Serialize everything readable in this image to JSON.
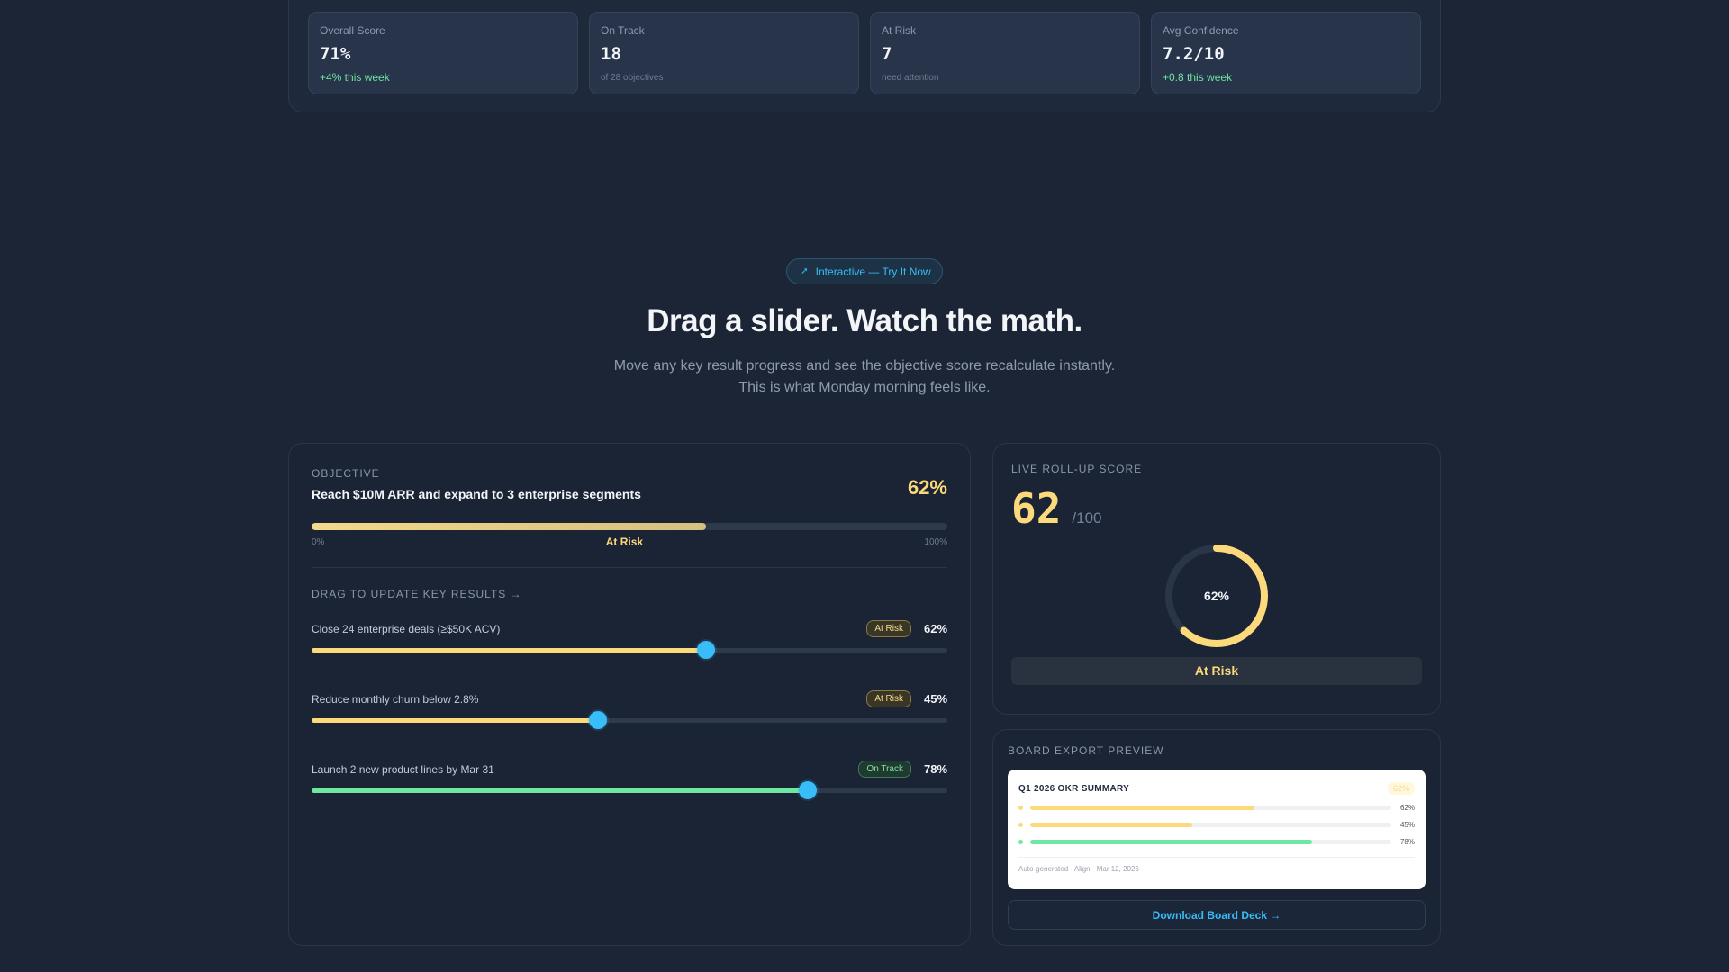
{
  "stats": [
    {
      "label": "Overall Score",
      "value": "71%",
      "sub": "+4% this week",
      "sub_kind": "pos"
    },
    {
      "label": "On Track",
      "value": "18",
      "sub": "of 28 objectives",
      "sub_kind": "muted"
    },
    {
      "label": "At Risk",
      "value": "7",
      "sub": "need attention",
      "sub_kind": "muted"
    },
    {
      "label": "Avg Confidence",
      "value": "7.2/10",
      "sub": "+0.8 this week",
      "sub_kind": "pos"
    }
  ],
  "hero": {
    "pill_icon": "cursor-icon",
    "pill_label": "Interactive — Try It Now",
    "title": "Drag a slider. Watch the math.",
    "subtitle_line1": "Move any key result progress and see the objective score recalculate instantly.",
    "subtitle_line2": "This is what Monday morning feels like."
  },
  "objective": {
    "eyebrow": "OBJECTIVE",
    "title": "Reach $10M ARR and expand to 3 enterprise segments",
    "percent_label": "62%",
    "progress": 0.62,
    "scale_min": "0%",
    "scale_max": "100%",
    "status": "At Risk",
    "kr_heading": "DRAG TO UPDATE KEY RESULTS →",
    "key_results": [
      {
        "label": "Close 24 enterprise deals (≥$50K ACV)",
        "badge": "At Risk",
        "badge_kind": "risk",
        "value_label": "62%",
        "progress": 0.62,
        "color": "#fcd97a"
      },
      {
        "label": "Reduce monthly churn below 2.8%",
        "badge": "At Risk",
        "badge_kind": "risk",
        "value_label": "45%",
        "progress": 0.45,
        "color": "#fcd97a"
      },
      {
        "label": "Launch 2 new product lines by Mar 31",
        "badge": "On Track",
        "badge_kind": "ok",
        "value_label": "78%",
        "progress": 0.78,
        "color": "#6ee7a0"
      }
    ]
  },
  "rollup": {
    "eyebrow": "LIVE ROLL-UP SCORE",
    "score": "62",
    "denominator": "/100",
    "ring_label": "62%",
    "ring_progress": 0.62,
    "ring_color": "#fcd97a",
    "status": "At Risk"
  },
  "export": {
    "eyebrow": "BOARD EXPORT PREVIEW",
    "preview_title": "Q1 2026 OKR SUMMARY",
    "preview_chip": "62%",
    "rows": [
      {
        "value_label": "62%",
        "progress": 0.62,
        "color": "#fcd97a"
      },
      {
        "value_label": "45%",
        "progress": 0.45,
        "color": "#fcd97a"
      },
      {
        "value_label": "78%",
        "progress": 0.78,
        "color": "#6ee7a0"
      }
    ],
    "footer": "Auto-generated · Align · Mar 12, 2026",
    "download_label": "Download Board Deck →"
  }
}
